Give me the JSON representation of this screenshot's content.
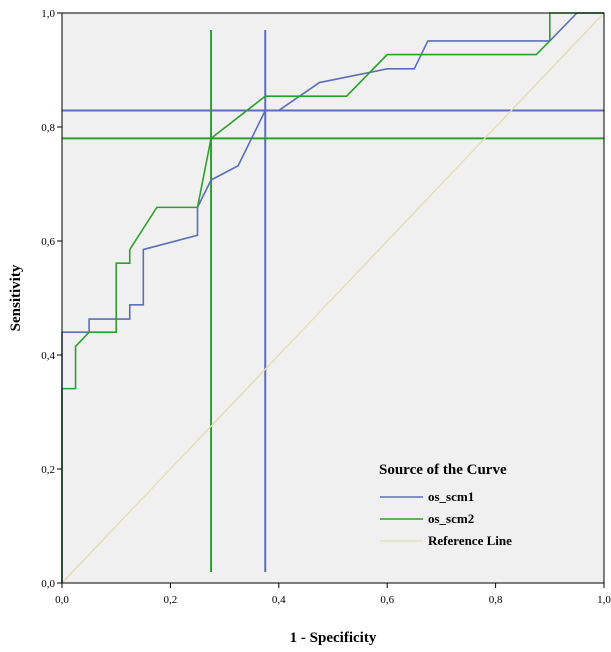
{
  "chart_data": {
    "type": "line",
    "xlabel": "1 - Specificity",
    "ylabel": "Sensitivity",
    "xlim": [
      0,
      1
    ],
    "ylim": [
      0,
      1
    ],
    "x_ticks": [
      "0,0",
      "0,2",
      "0,4",
      "0,6",
      "0,8",
      "1,0"
    ],
    "y_ticks": [
      "0,0",
      "0,2",
      "0,4",
      "0,6",
      "0,8",
      "1,0"
    ],
    "grid": false,
    "legend": {
      "title": "Source of the Curve",
      "placement": "bottom-right",
      "entries": [
        "os_scm1",
        "os_scm2",
        "Reference Line"
      ]
    },
    "series": [
      {
        "name": "os_scm1",
        "color": "#5b6fb8",
        "x": [
          0,
          0,
          0.05,
          0.05,
          0.125,
          0.125,
          0.15,
          0.15,
          0.25,
          0.25,
          0.275,
          0.325,
          0.375,
          0.375,
          0.4,
          0.475,
          0.6,
          0.65,
          0.675,
          0.9,
          0.95,
          1
        ],
        "y": [
          0,
          0.44,
          0.44,
          0.463,
          0.463,
          0.488,
          0.488,
          0.585,
          0.61,
          0.659,
          0.707,
          0.732,
          0.829,
          0.829,
          0.829,
          0.878,
          0.902,
          0.902,
          0.951,
          0.951,
          1,
          1
        ]
      },
      {
        "name": "os_scm2",
        "color": "#2ca02c",
        "x": [
          0,
          0,
          0.025,
          0.025,
          0.05,
          0.1,
          0.1,
          0.125,
          0.125,
          0.175,
          0.25,
          0.275,
          0.375,
          0.525,
          0.6,
          0.875,
          0.9,
          0.9,
          1
        ],
        "y": [
          0,
          0.341,
          0.341,
          0.415,
          0.44,
          0.44,
          0.561,
          0.561,
          0.585,
          0.659,
          0.659,
          0.78,
          0.854,
          0.854,
          0.927,
          0.927,
          0.951,
          1,
          1
        ]
      },
      {
        "name": "Reference Line",
        "color": "#e3deb0",
        "x": [
          0,
          1
        ],
        "y": [
          0,
          1
        ]
      }
    ],
    "cutoff_lines": [
      {
        "series": "os_scm1",
        "color": "#5b6fb8",
        "x": 0.375,
        "y": 0.829
      },
      {
        "series": "os_scm2",
        "color": "#2ca02c",
        "x": 0.275,
        "y": 0.78
      }
    ]
  }
}
